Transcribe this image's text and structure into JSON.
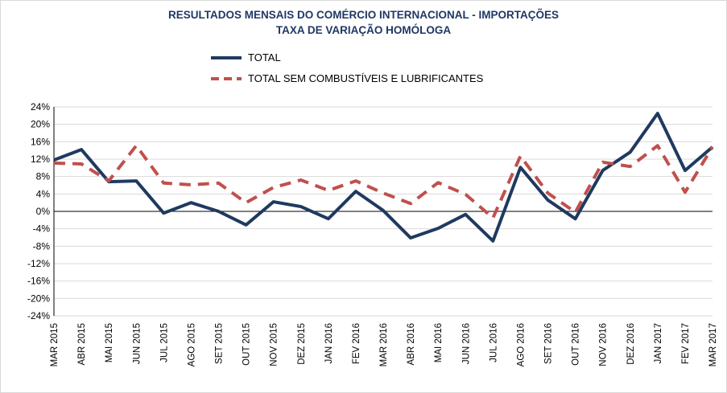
{
  "chart_data": {
    "type": "line",
    "title": "RESULTADOS MENSAIS DO COMÉRCIO INTERNACIONAL  - IMPORTAÇÕES",
    "subtitle": "TAXA DE VARIAÇÃO HOMÓLOGA",
    "xlabel": "",
    "ylabel": "",
    "ylim": [
      -24,
      24
    ],
    "yticks": [
      24,
      20,
      16,
      12,
      8,
      4,
      0,
      -4,
      -8,
      -12,
      -16,
      -20,
      -24
    ],
    "ytick_labels": [
      "24%",
      "20%",
      "16%",
      "12%",
      "8%",
      "4%",
      "0%",
      "-4%",
      "-8%",
      "-12%",
      "-16%",
      "-20%",
      "-24%"
    ],
    "grid": true,
    "legend_position": "top",
    "categories": [
      "MAR 2015",
      "ABR 2015",
      "MAI 2015",
      "JUN 2015",
      "JUL 2015",
      "AGO 2015",
      "SET 2015",
      "OUT 2015",
      "NOV 2015",
      "DEZ 2015",
      "JAN 2016",
      "FEV 2016",
      "MAR 2016",
      "ABR 2016",
      "MAI 2016",
      "JUN 2016",
      "JUL 2016",
      "AGO 2016",
      "SET 2016",
      "OUT 2016",
      "NOV 2016",
      "DEZ 2016",
      "JAN 2017",
      "FEV 2017",
      "MAR 2017"
    ],
    "series": [
      {
        "name": "TOTAL",
        "color": "#1f3a5f",
        "style": "solid",
        "values": [
          11.8,
          14.2,
          6.8,
          7.0,
          -0.4,
          2.0,
          0.0,
          -3.1,
          2.2,
          1.1,
          -1.7,
          4.6,
          0.2,
          -6.1,
          -3.9,
          -0.7,
          -6.8,
          10.1,
          2.6,
          -1.7,
          9.4,
          13.6,
          22.5,
          9.4,
          14.8
        ]
      },
      {
        "name": "TOTAL SEM COMBUSTÍVEIS E LUBRIFICANTES",
        "color": "#c0504d",
        "style": "dashed",
        "values": [
          11.1,
          10.9,
          7.0,
          15.1,
          6.5,
          6.1,
          6.5,
          2.0,
          5.5,
          7.2,
          4.8,
          7.0,
          4.2,
          1.8,
          6.6,
          3.9,
          -1.5,
          12.7,
          4.2,
          -0.2,
          11.3,
          10.3,
          15.1,
          4.4,
          14.8
        ]
      }
    ]
  }
}
